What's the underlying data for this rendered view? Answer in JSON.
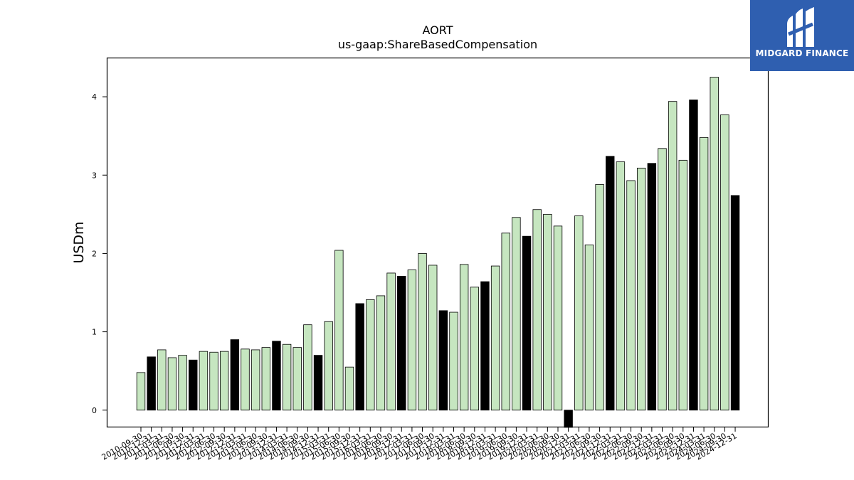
{
  "chart_data": {
    "type": "bar",
    "title": "AORT",
    "subtitle": "us-gaap:ShareBasedCompensation",
    "ylabel": "USDm",
    "xlabel": "",
    "ylim": [
      -0.22,
      4.5
    ],
    "yticks": [
      0,
      1,
      2,
      3,
      4
    ],
    "grid": false,
    "colors": {
      "quarter": "#c6e6c0",
      "annual": "#000000",
      "edge": "#000000"
    },
    "categories": [
      "2010-09-30",
      "2010-12-31",
      "2011-03-31",
      "2011-06-30",
      "2011-09-30",
      "2011-12-31",
      "2012-03-31",
      "2012-06-30",
      "2012-09-30",
      "2012-12-31",
      "2013-03-31",
      "2013-06-30",
      "2013-09-30",
      "2013-12-31",
      "2014-03-31",
      "2014-06-30",
      "2014-09-30",
      "2014-12-31",
      "2015-03-31",
      "2015-06-30",
      "2015-09-30",
      "2015-12-31",
      "2016-03-31",
      "2016-06-30",
      "2016-09-30",
      "2016-12-31",
      "2017-03-31",
      "2017-06-30",
      "2017-09-30",
      "2017-12-31",
      "2018-03-31",
      "2018-06-30",
      "2018-09-30",
      "2018-12-31",
      "2019-03-31",
      "2019-06-30",
      "2019-09-30",
      "2019-12-31",
      "2020-03-31",
      "2020-06-30",
      "2020-09-30",
      "2020-12-31",
      "2021-03-31",
      "2021-06-30",
      "2021-09-30",
      "2021-12-31",
      "2022-03-31",
      "2022-06-30",
      "2022-09-30",
      "2022-12-31",
      "2023-03-31",
      "2023-06-30",
      "2023-09-30",
      "2023-12-31",
      "2024-03-31",
      "2024-06-30",
      "2024-09-30",
      "2024-12-31"
    ],
    "values": [
      0.48,
      0.68,
      0.77,
      0.67,
      0.7,
      0.64,
      0.75,
      0.74,
      0.75,
      0.9,
      0.78,
      0.77,
      0.8,
      0.88,
      0.84,
      0.8,
      1.09,
      0.7,
      1.13,
      2.04,
      0.55,
      1.36,
      1.41,
      1.46,
      1.75,
      1.71,
      1.79,
      2.0,
      1.85,
      1.27,
      1.25,
      1.86,
      1.57,
      1.64,
      1.84,
      2.26,
      2.46,
      2.22,
      2.56,
      2.5,
      2.35,
      -0.22,
      2.48,
      2.11,
      2.88,
      3.24,
      3.17,
      2.93,
      3.09,
      3.15,
      3.34,
      3.94,
      3.19,
      3.96,
      3.48,
      4.25,
      3.77,
      2.74
    ],
    "highlight": [
      false,
      true,
      false,
      false,
      false,
      true,
      false,
      false,
      false,
      true,
      false,
      false,
      false,
      true,
      false,
      false,
      false,
      true,
      false,
      false,
      false,
      true,
      false,
      false,
      false,
      true,
      false,
      false,
      false,
      true,
      false,
      false,
      false,
      true,
      false,
      false,
      false,
      true,
      false,
      false,
      false,
      true,
      false,
      false,
      false,
      true,
      false,
      false,
      false,
      true,
      false,
      false,
      false,
      true,
      false,
      false,
      false,
      true
    ]
  },
  "logo": {
    "text": "MIDGARD FINANCE",
    "color": "#2f5fb0"
  }
}
